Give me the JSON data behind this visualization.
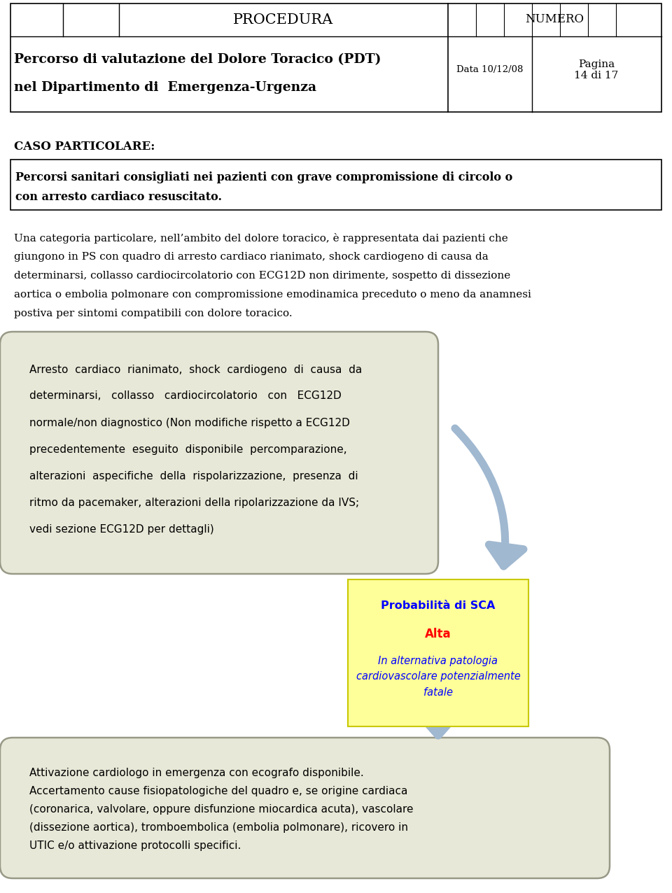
{
  "header_title": "PROCEDURA",
  "header_numero": "NUMERO",
  "header_data": "Data 10/12/08",
  "header_pagina": "Pagina\n14 di 17",
  "doc_title_line1": "Percorso di valutazione del Dolore Toracico (PDT)",
  "doc_title_line2": "nel Dipartimento di  Emergenza-Urgenza",
  "caso_particolare": "CASO PARTICOLARE:",
  "box1_line1": "Percorsi sanitari consigliati nei pazienti con grave compromissione di circolo o",
  "box1_line2": "con arresto cardiaco resuscitato.",
  "para_line1": "Una categoria particolare, nell’ambito del dolore toracico, è rappresentata dai pazienti che",
  "para_line2": "giungono in PS con quadro di arresto cardiaco rianimato, shock cardiogeno di causa da",
  "para_line3": "determinarsi, collasso cardiocircolatorio con ECG12D non dirimente, sospetto di dissezione",
  "para_line4": "aortica o embolia polmonare con compromissione emodinamica preceduto o meno da anamnesi",
  "para_line5": "postiva per sintomi compatibili con dolore toracico.",
  "rbox_line1": "Arresto  cardiaco  rianimato,  shock  cardiogeno  di  causa  da",
  "rbox_line2": "determinarsi,   collasso   cardiocircolatorio   con   ECG12D",
  "rbox_line3": "normale/non diagnostico (Non modifiche rispetto a ECG12D",
  "rbox_line4": "precedentemente  eseguito  disponibile  percomparazione,",
  "rbox_line5": "alterazioni  aspecifiche  della  rispolarizzazione,  presenza  di",
  "rbox_line6": "ritmo da pacemaker, alterazioni della ripolarizzazione da IVS;",
  "rbox_line7": "vedi sezione ECG12D per dettagli)",
  "yellow_title": "Probabilità di SCA",
  "yellow_alta": "Alta",
  "yellow_line3": "In alternativa patologia",
  "yellow_line4": "cardiovascolare potenzialmente",
  "yellow_line5": "fatale",
  "bbox2_line1": "Attivazione cardiologo in emergenza con ecografo disponibile.",
  "bbox2_line2": "Accertamento cause fisiopatologiche del quadro e, se origine cardiaca",
  "bbox2_line3": "(coronarica, valvolare, oppure disfunzione miocardica acuta), vascolare",
  "bbox2_line4": "(dissezione aortica), tromboembolica (embolia polmonare), ricovero in",
  "bbox2_line5": "UTIC e/o attivazione protocolli specifici.",
  "bg_color": "#ffffff",
  "rounded_box_bg": "#e8e8d8",
  "yellow_box_bg": "#ffff99",
  "arrow_color": "#a0b8d0"
}
